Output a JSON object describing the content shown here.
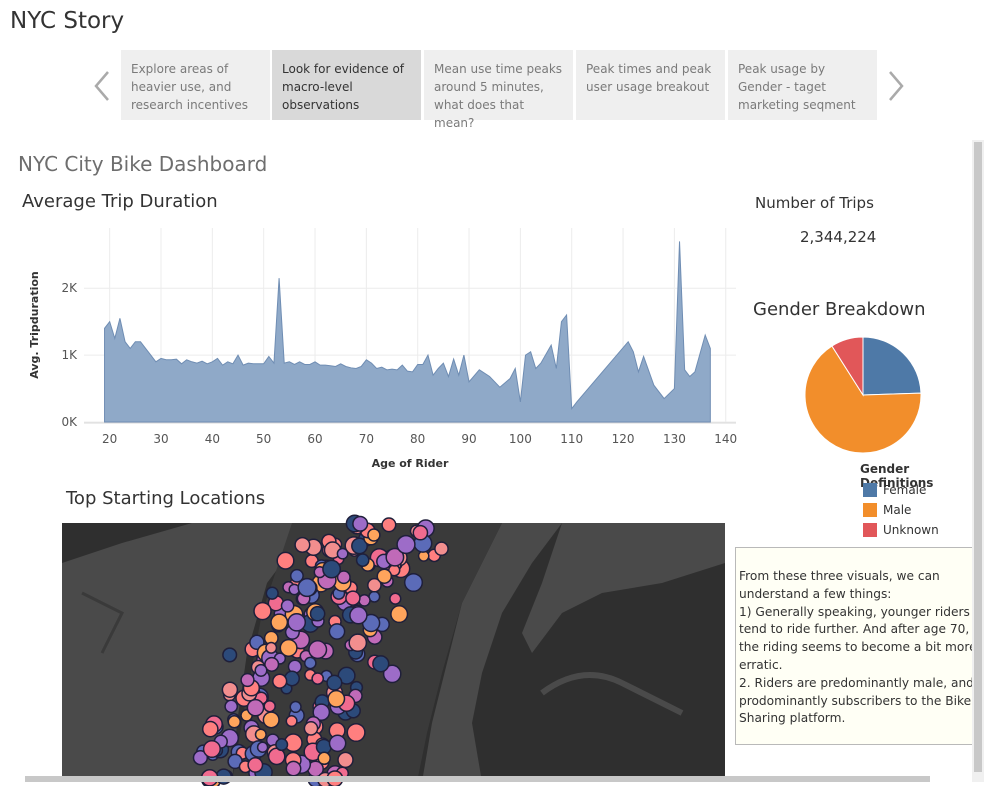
{
  "story": {
    "title": "NYC Story",
    "tabs": [
      {
        "label": "Explore areas of heavier use, and research incentives"
      },
      {
        "label": "Look for evidence of macro-level observations"
      },
      {
        "label": "Mean use time peaks around 5 minutes, what does that mean?"
      },
      {
        "label": "Peak times and peak user usage breakout"
      },
      {
        "label": "Peak usage by Gender - taget marketing seqment"
      }
    ],
    "active_tab": 1,
    "nav_icons": [
      "chevron-left-icon",
      "chevron-right-icon"
    ]
  },
  "dashboard": {
    "title": "NYC City Bike Dashboard",
    "trip_chart_title": "Average Trip Duration",
    "map_title": "Top Starting Locations",
    "kpi": {
      "label": "Number of Trips",
      "value": "2,344,224"
    },
    "gender_title": "Gender Breakdown",
    "legend": {
      "title": "Gender Definitions",
      "items": [
        {
          "label": "Female",
          "color": "#4e79a7"
        },
        {
          "label": "Male",
          "color": "#f28e2b"
        },
        {
          "label": "Unknown",
          "color": "#e15759"
        }
      ]
    },
    "note": "From these three visuals, we can understand a few things:\n1) Generally speaking, younger riders tend to ride further. And after age 70, the riding seems to become a bit more erratic.\n2. Riders are predominantly male, and prodominantly subscribers to the Bike Sharing platform."
  },
  "chart_data": [
    {
      "type": "area",
      "title": "",
      "xlabel": "Age of Rider",
      "ylabel": "Avg. Tripduration",
      "xlim": [
        15,
        142
      ],
      "ylim": [
        0,
        2900
      ],
      "xticks": [
        20,
        30,
        40,
        50,
        60,
        70,
        80,
        90,
        100,
        110,
        120,
        130,
        140
      ],
      "yticks": [
        {
          "value": 0,
          "label": "0K"
        },
        {
          "value": 1000,
          "label": "1K"
        },
        {
          "value": 2000,
          "label": "2K"
        }
      ],
      "color": "#8fa9c8",
      "x": [
        19,
        20,
        21,
        22,
        23,
        24,
        25,
        26,
        27,
        28,
        29,
        30,
        31,
        32,
        33,
        34,
        35,
        36,
        37,
        38,
        39,
        40,
        41,
        42,
        43,
        44,
        45,
        46,
        47,
        48,
        49,
        50,
        51,
        52,
        53,
        54,
        55,
        56,
        57,
        58,
        59,
        60,
        61,
        62,
        63,
        64,
        65,
        66,
        67,
        68,
        69,
        70,
        71,
        72,
        73,
        74,
        75,
        76,
        77,
        78,
        79,
        80,
        81,
        82,
        83,
        84,
        85,
        86,
        87,
        88,
        89,
        90,
        92,
        94,
        96,
        98,
        99,
        100,
        101,
        102,
        103,
        104,
        106,
        107,
        108,
        109,
        110,
        111,
        121,
        122,
        123,
        124,
        126,
        128,
        130,
        131,
        132,
        133,
        134,
        136,
        137
      ],
      "values": [
        1400,
        1500,
        1250,
        1550,
        1200,
        1100,
        1200,
        1200,
        1100,
        1000,
        900,
        950,
        930,
        930,
        940,
        870,
        930,
        900,
        880,
        910,
        870,
        900,
        950,
        850,
        900,
        870,
        1000,
        850,
        880,
        870,
        870,
        870,
        980,
        880,
        2150,
        880,
        900,
        860,
        900,
        860,
        860,
        900,
        850,
        850,
        840,
        830,
        870,
        830,
        810,
        800,
        830,
        930,
        880,
        800,
        820,
        780,
        790,
        780,
        850,
        760,
        750,
        860,
        860,
        1000,
        700,
        800,
        880,
        680,
        940,
        700,
        1000,
        600,
        780,
        680,
        520,
        650,
        800,
        300,
        1000,
        1050,
        800,
        880,
        1150,
        800,
        1500,
        1600,
        200,
        300,
        1200,
        1050,
        750,
        980,
        550,
        350,
        500,
        2700,
        780,
        680,
        750,
        1300,
        1100
      ]
    },
    {
      "type": "pie",
      "title": "Gender Breakdown",
      "slices": [
        {
          "label": "Female",
          "value": 24.5,
          "color": "#4e79a7"
        },
        {
          "label": "Male",
          "value": 66.5,
          "color": "#f28e2b"
        },
        {
          "label": "Unknown",
          "value": 9.0,
          "color": "#e15759"
        }
      ]
    }
  ]
}
